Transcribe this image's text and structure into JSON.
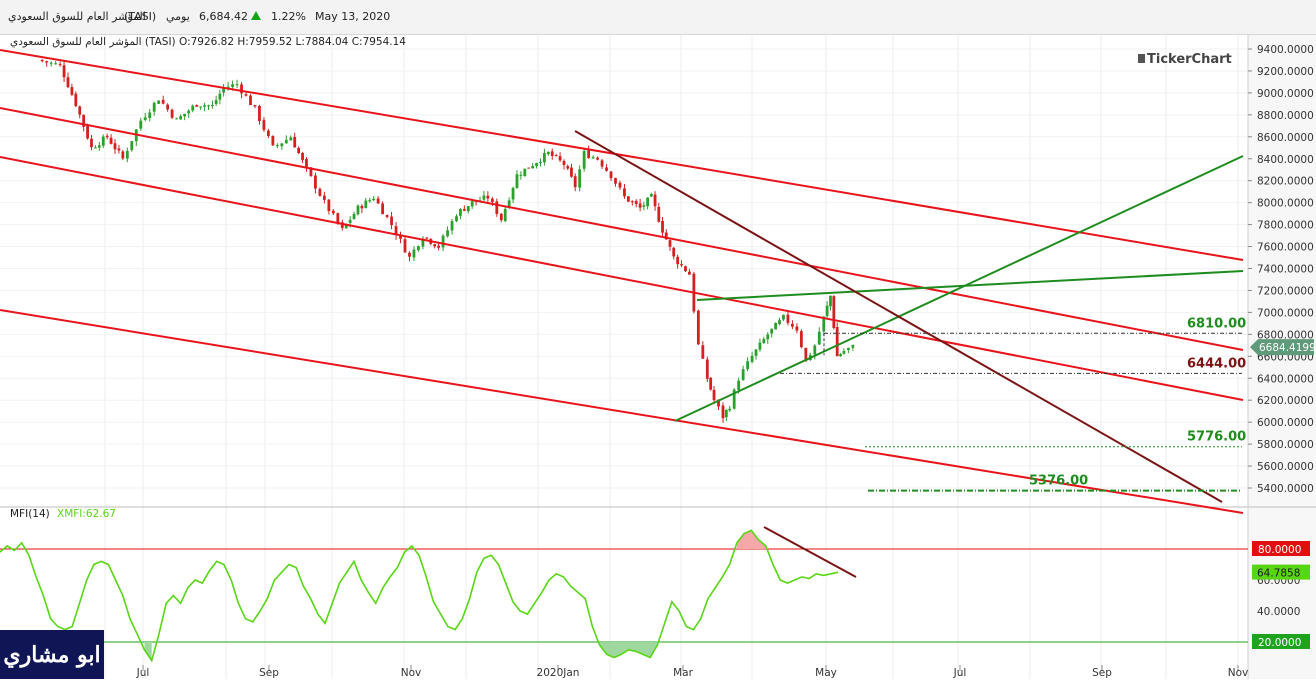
{
  "header": {
    "name": "المؤشر العام للسوق السعودي",
    "symbol": "(TASI)",
    "period": "يومي",
    "price": "6,684.42",
    "change_pct": "1.22%",
    "date": "May 13, 2020",
    "up_color": "#17a317"
  },
  "badge": {
    "text": "ابو مشاري"
  },
  "chart_data": [
    {
      "type": "candlestick",
      "ohlc_label": "المؤشر العام للسوق السعودي (TASI) O:7926.82 H:7959.52 L:7884.04 C:7954.14",
      "brand": "TickerChart",
      "y_ticks": [
        "9400.0000",
        "9200.0000",
        "9000.0000",
        "8800.0000",
        "8600.0000",
        "8400.0000",
        "8200.0000",
        "8000.0000",
        "7800.0000",
        "7600.0000",
        "7400.0000",
        "7200.0000",
        "7000.0000",
        "6800.0000",
        "6600.0000",
        "6400.0000",
        "6200.0000",
        "6000.0000",
        "5800.0000",
        "5600.0000",
        "5400.0000"
      ],
      "ylim": [
        5320,
        9460
      ],
      "x_axis_labels": [
        "Jul",
        "Sep",
        "Nov",
        "2020Jan",
        "Mar",
        "May",
        "Jul",
        "Sep",
        "Nov"
      ],
      "last_price_tag": "6684.4199",
      "colors": {
        "up": "#2ca02c",
        "down": "#d42020",
        "channel": "#e8141a",
        "support_trend": "#1e8c1e",
        "down_trend": "#7a1414"
      },
      "close_path": [
        [
          "2019-05-15",
          9300
        ],
        [
          "2019-05-25",
          9250
        ],
        [
          "2019-06-01",
          8900
        ],
        [
          "2019-06-08",
          8500
        ],
        [
          "2019-06-15",
          8600
        ],
        [
          "2019-06-22",
          8400
        ],
        [
          "2019-06-30",
          8750
        ],
        [
          "2019-07-08",
          8950
        ],
        [
          "2019-07-16",
          8750
        ],
        [
          "2019-07-25",
          8900
        ],
        [
          "2019-08-01",
          8880
        ],
        [
          "2019-08-06",
          9050
        ],
        [
          "2019-08-12",
          9080
        ],
        [
          "2019-08-20",
          8850
        ],
        [
          "2019-08-28",
          8500
        ],
        [
          "2019-09-05",
          8600
        ],
        [
          "2019-09-12",
          8300
        ],
        [
          "2019-09-20",
          8000
        ],
        [
          "2019-09-28",
          7750
        ],
        [
          "2019-10-05",
          7950
        ],
        [
          "2019-10-12",
          8050
        ],
        [
          "2019-10-20",
          7800
        ],
        [
          "2019-10-28",
          7500
        ],
        [
          "2019-11-03",
          7700
        ],
        [
          "2019-11-10",
          7600
        ],
        [
          "2019-11-18",
          7900
        ],
        [
          "2019-11-25",
          8000
        ],
        [
          "2019-12-02",
          8050
        ],
        [
          "2019-12-08",
          7850
        ],
        [
          "2019-12-15",
          8250
        ],
        [
          "2019-12-22",
          8350
        ],
        [
          "2019-12-29",
          8450
        ],
        [
          "2020-01-05",
          8350
        ],
        [
          "2020-01-10",
          8150
        ],
        [
          "2020-01-14",
          8450
        ],
        [
          "2020-01-20",
          8400
        ],
        [
          "2020-01-26",
          8250
        ],
        [
          "2020-02-01",
          8050
        ],
        [
          "2020-02-08",
          7950
        ],
        [
          "2020-02-13",
          8050
        ],
        [
          "2020-02-18",
          7750
        ],
        [
          "2020-02-23",
          7500
        ],
        [
          "2020-03-01",
          7350
        ],
        [
          "2020-03-05",
          6700
        ],
        [
          "2020-03-09",
          6400
        ],
        [
          "2020-03-12",
          6200
        ],
        [
          "2020-03-16",
          6050
        ],
        [
          "2020-03-19",
          6150
        ],
        [
          "2020-03-23",
          6400
        ],
        [
          "2020-03-29",
          6600
        ],
        [
          "2020-04-05",
          6800
        ],
        [
          "2020-04-12",
          6950
        ],
        [
          "2020-04-18",
          6850
        ],
        [
          "2020-04-22",
          6550
        ],
        [
          "2020-04-26",
          6700
        ],
        [
          "2020-04-30",
          6950
        ],
        [
          "2020-05-03",
          7150
        ],
        [
          "2020-05-06",
          6600
        ],
        [
          "2020-05-09",
          6650
        ],
        [
          "2020-05-13",
          6684
        ]
      ],
      "annotations": [
        {
          "label": "6810.00",
          "value": 6810,
          "color": "#1e8c1e"
        },
        {
          "label": "6444.00",
          "value": 6444,
          "color": "#7a1414"
        },
        {
          "label": "5776.00",
          "value": 5776,
          "color": "#1e8c1e"
        },
        {
          "label": "5376.00",
          "value": 5376,
          "color": "#1e8c1e"
        }
      ]
    },
    {
      "type": "line",
      "title": "MFI(14)",
      "legend": "XMFI:62.67",
      "line_color": "#58d614",
      "y_ticks": [
        "60.0000",
        "40.0000"
      ],
      "ylim": [
        0,
        110
      ],
      "levels": [
        {
          "label": "80.0000",
          "value": 80,
          "color": "#e01010"
        },
        {
          "label": "20.0000",
          "value": 20,
          "color": "#1ea31e"
        }
      ],
      "last_value_tag": "64.7858",
      "values": [
        78,
        82,
        79,
        84,
        76,
        62,
        50,
        35,
        30,
        28,
        30,
        45,
        60,
        70,
        72,
        70,
        60,
        50,
        35,
        25,
        15,
        8,
        25,
        45,
        50,
        45,
        55,
        60,
        58,
        66,
        72,
        70,
        60,
        45,
        35,
        33,
        40,
        48,
        60,
        65,
        70,
        68,
        56,
        48,
        38,
        32,
        45,
        58,
        65,
        72,
        60,
        52,
        45,
        55,
        62,
        68,
        78,
        82,
        76,
        62,
        46,
        38,
        30,
        28,
        35,
        48,
        65,
        74,
        76,
        70,
        58,
        46,
        40,
        38,
        45,
        52,
        60,
        64,
        62,
        56,
        52,
        48,
        30,
        18,
        12,
        10,
        12,
        15,
        14,
        12,
        10,
        18,
        32,
        46,
        40,
        30,
        28,
        35,
        48,
        55,
        62,
        70,
        84,
        90,
        92,
        86,
        82,
        70,
        60,
        58,
        60,
        62,
        61,
        64,
        63,
        64,
        65
      ]
    }
  ]
}
